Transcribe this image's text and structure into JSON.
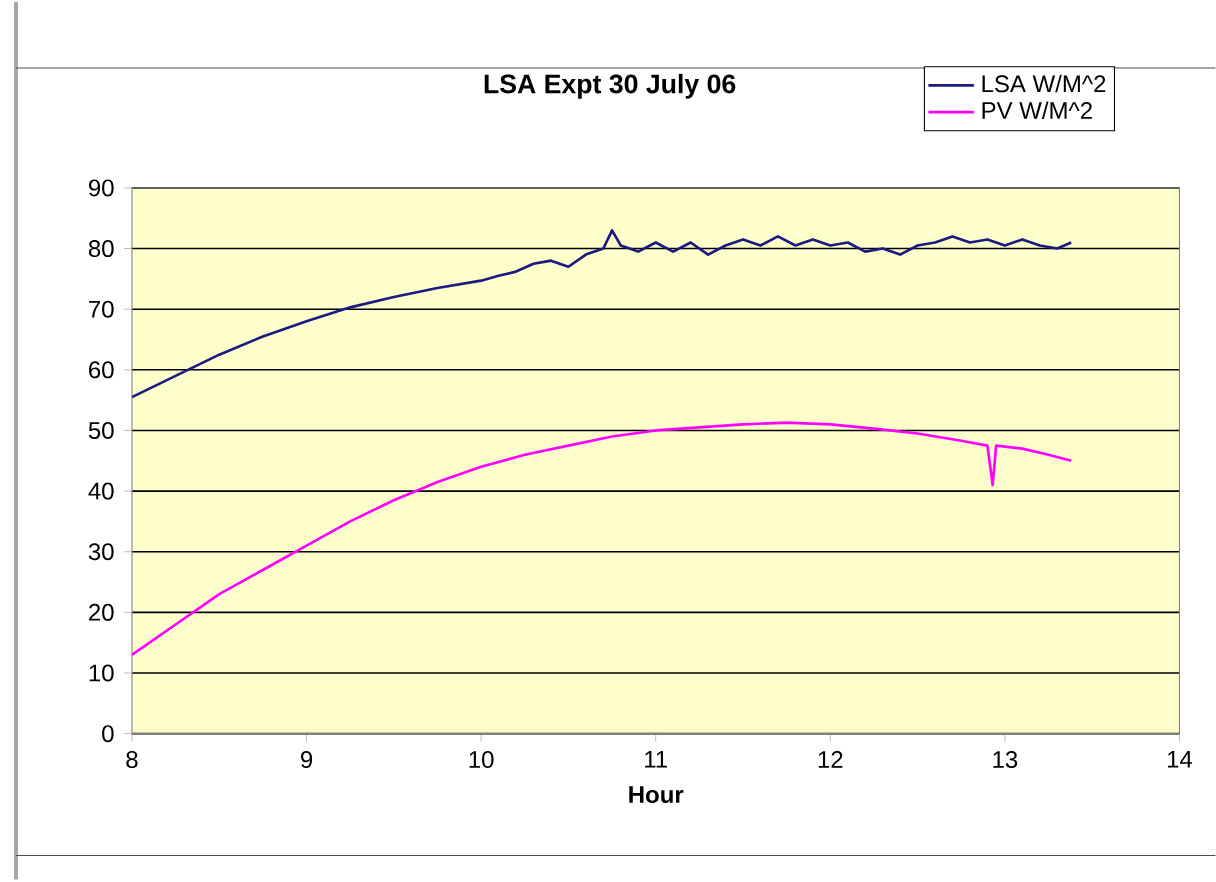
{
  "chart_data": {
    "type": "line",
    "title": "LSA Expt 30 July 06",
    "xlabel": "Hour",
    "xlim": [
      8,
      14
    ],
    "xticks": [
      8,
      9,
      10,
      11,
      12,
      13,
      14
    ],
    "ylim": [
      0,
      90
    ],
    "yticks": [
      0,
      10,
      20,
      30,
      40,
      50,
      60,
      70,
      80,
      90
    ],
    "grid": "y",
    "legend": "top right",
    "marker": "none",
    "line_style": "solid",
    "series": [
      {
        "name": "LSA W/M^2",
        "color": "#1a1a80",
        "x": [
          8,
          8.25,
          8.5,
          8.75,
          9,
          9.25,
          9.5,
          9.75,
          10,
          10.1,
          10.2,
          10.3,
          10.4,
          10.5,
          10.6,
          10.7,
          10.75,
          10.8,
          10.9,
          11.0,
          11.1,
          11.2,
          11.3,
          11.4,
          11.5,
          11.6,
          11.7,
          11.8,
          11.9,
          12.0,
          12.1,
          12.2,
          12.3,
          12.4,
          12.5,
          12.6,
          12.7,
          12.8,
          12.9,
          13.0,
          13.1,
          13.2,
          13.3,
          13.38
        ],
        "values": [
          55.5,
          59,
          62.5,
          65.5,
          68,
          70.3,
          72,
          73.5,
          74.7,
          75.5,
          76.2,
          77.5,
          78,
          77,
          79,
          80,
          83,
          80.5,
          79.5,
          81,
          79.5,
          81,
          79,
          80.5,
          81.5,
          80.5,
          82,
          80.5,
          81.5,
          80.5,
          81,
          79.5,
          80,
          79,
          80.5,
          81,
          82,
          81,
          81.5,
          80.5,
          81.5,
          80.5,
          80,
          81
        ]
      },
      {
        "name": "PV W/M^2",
        "color": "#ff00ff",
        "x": [
          8,
          8.25,
          8.5,
          8.75,
          9,
          9.25,
          9.5,
          9.75,
          10,
          10.25,
          10.5,
          10.75,
          11,
          11.25,
          11.5,
          11.75,
          12,
          12.25,
          12.5,
          12.75,
          12.9,
          12.93,
          12.95,
          13.1,
          13.25,
          13.38
        ],
        "values": [
          13,
          18,
          23,
          27,
          31,
          35,
          38.5,
          41.5,
          44,
          46,
          47.5,
          49,
          50,
          50.5,
          51,
          51.3,
          51,
          50.3,
          49.5,
          48.3,
          47.5,
          41,
          47.5,
          47,
          46,
          45
        ]
      }
    ]
  }
}
